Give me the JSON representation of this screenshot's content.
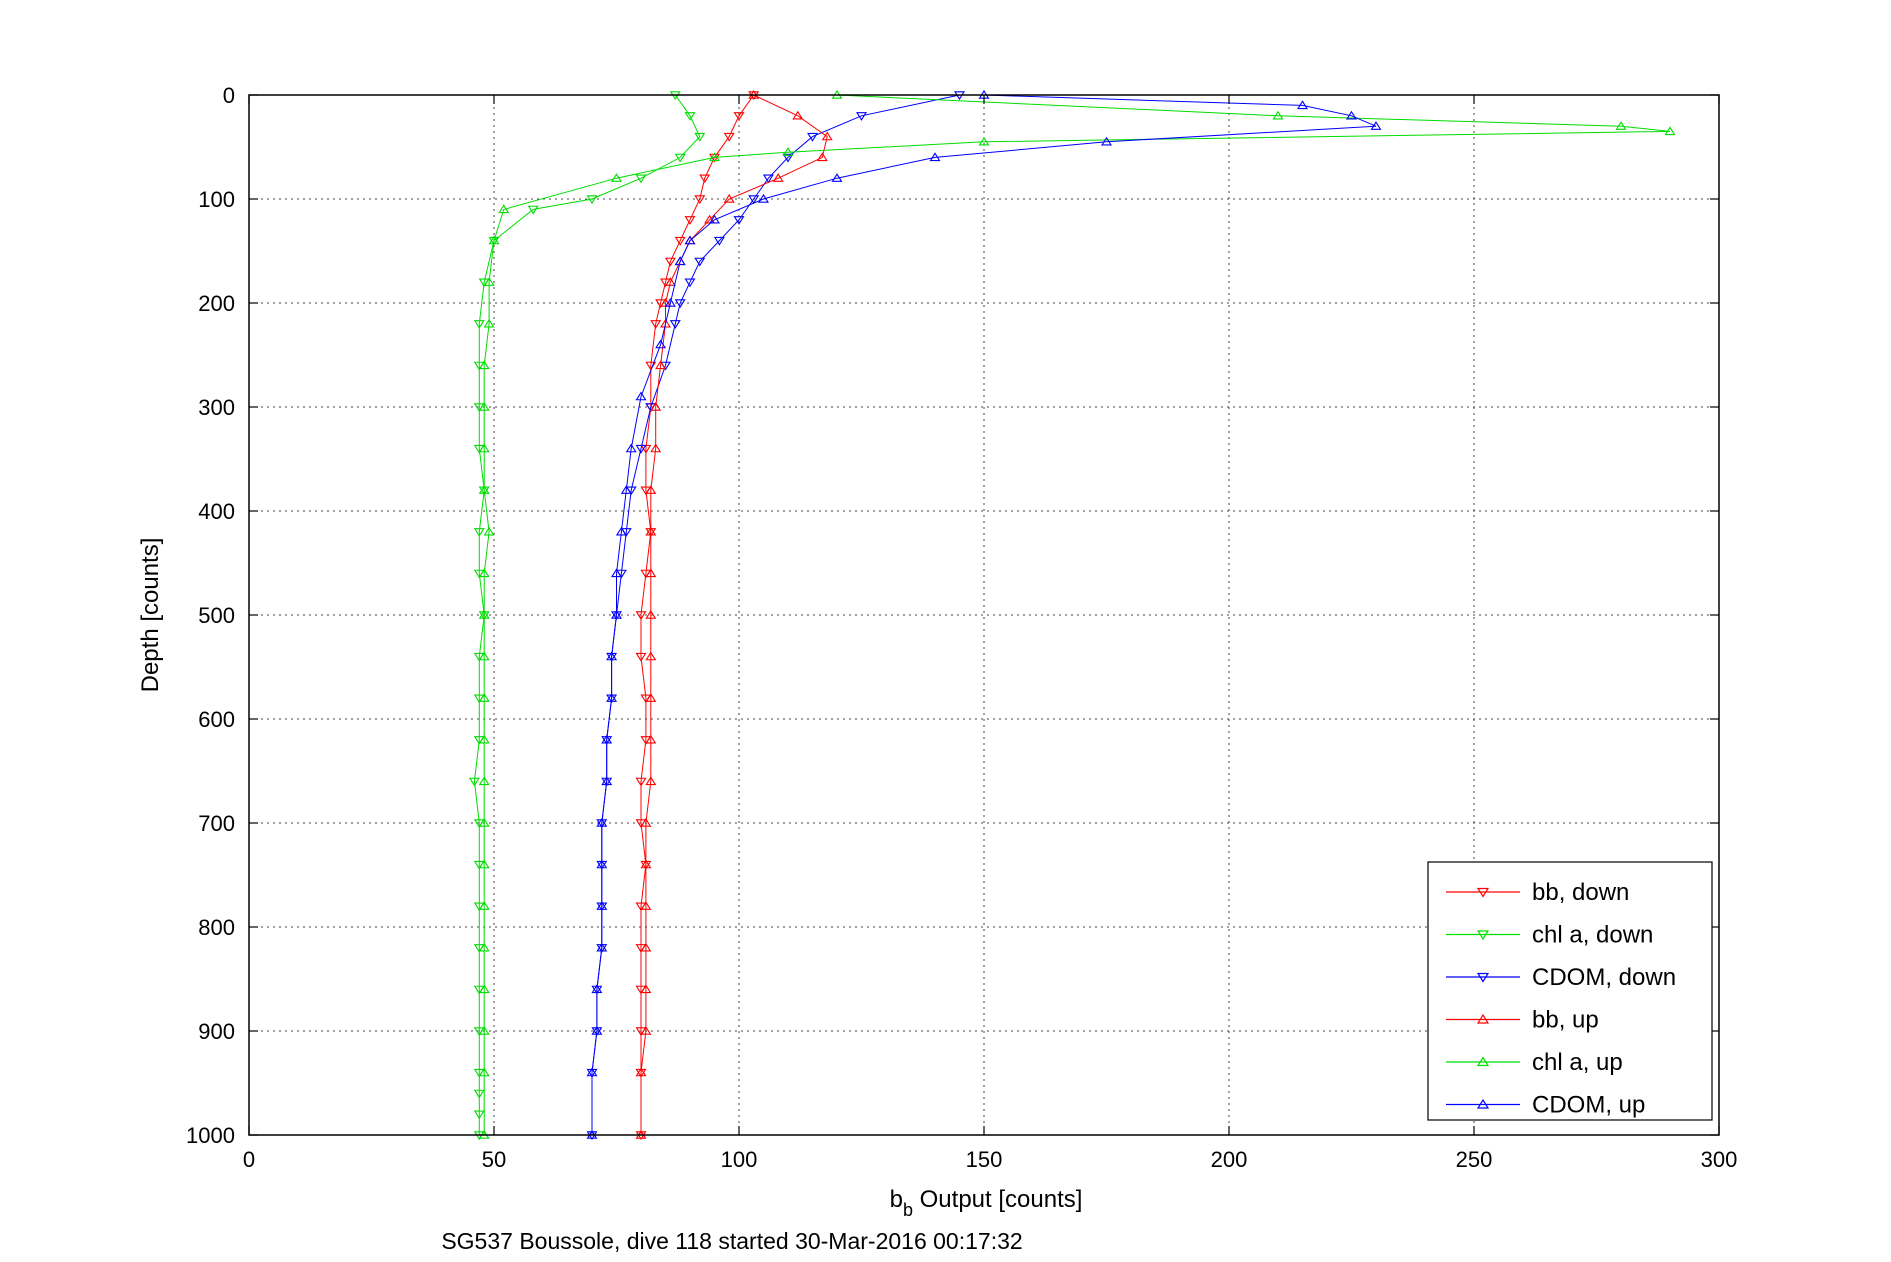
{
  "chart_data": {
    "type": "scatter",
    "xlabel_main": "b",
    "xlabel_sub": "b",
    "xlabel_rest": " Output [counts]",
    "ylabel": "Depth [counts]",
    "caption": "SG537 Boussole, dive 118 started 30-Mar-2016 00:17:32",
    "xlim": [
      0,
      300
    ],
    "ylim": [
      0,
      1000
    ],
    "y_reversed": true,
    "grid": true,
    "legend_position": "bottom-right",
    "x_ticks": [
      "0",
      "50",
      "100",
      "150",
      "200",
      "250",
      "300"
    ],
    "y_ticks": [
      "0",
      "100",
      "200",
      "300",
      "400",
      "500",
      "600",
      "700",
      "800",
      "900",
      "1000"
    ],
    "series": [
      {
        "name": "bb, down",
        "color": "#ff0000",
        "marker": "triangle-down",
        "x": [
          103,
          100,
          98,
          95,
          93,
          92,
          90,
          88,
          86,
          85,
          84,
          83,
          82,
          82,
          81,
          81,
          82,
          81,
          80,
          80,
          81,
          81,
          80,
          80,
          81,
          80,
          80,
          80,
          80,
          80,
          80
        ],
        "y": [
          0,
          20,
          40,
          60,
          80,
          100,
          120,
          140,
          160,
          180,
          200,
          220,
          260,
          300,
          340,
          380,
          420,
          460,
          500,
          540,
          580,
          620,
          660,
          700,
          740,
          780,
          820,
          860,
          900,
          940,
          1000
        ]
      },
      {
        "name": "chl a, down",
        "color": "#00dd00",
        "marker": "triangle-down",
        "x": [
          87,
          90,
          92,
          88,
          80,
          70,
          58,
          50,
          48,
          47,
          47,
          47,
          47,
          48,
          47,
          47,
          48,
          47,
          47,
          47,
          46,
          47,
          47,
          47,
          47,
          47,
          47,
          47,
          47,
          47,
          47
        ],
        "y": [
          0,
          20,
          40,
          60,
          80,
          100,
          110,
          140,
          180,
          220,
          260,
          300,
          340,
          380,
          420,
          460,
          500,
          540,
          580,
          620,
          660,
          700,
          740,
          780,
          820,
          860,
          900,
          940,
          960,
          980,
          1000
        ]
      },
      {
        "name": "CDOM, down",
        "color": "#0000ff",
        "marker": "triangle-down",
        "x": [
          145,
          125,
          115,
          110,
          106,
          103,
          100,
          96,
          92,
          90,
          88,
          87,
          85,
          82,
          80,
          78,
          77,
          76,
          75,
          74,
          74,
          73,
          73,
          72,
          72,
          72,
          72,
          71,
          71,
          70,
          70
        ],
        "y": [
          0,
          20,
          40,
          60,
          80,
          100,
          120,
          140,
          160,
          180,
          200,
          220,
          260,
          300,
          340,
          380,
          420,
          460,
          500,
          540,
          580,
          620,
          660,
          700,
          740,
          780,
          820,
          860,
          900,
          940,
          1000
        ]
      },
      {
        "name": "bb, up",
        "color": "#ff0000",
        "marker": "triangle-up",
        "x": [
          103,
          112,
          118,
          117,
          108,
          98,
          94,
          90,
          88,
          86,
          85,
          85,
          84,
          83,
          83,
          82,
          82,
          82,
          82,
          82,
          82,
          82,
          82,
          81,
          81,
          81,
          81,
          81,
          81,
          80,
          80
        ],
        "y": [
          0,
          20,
          40,
          60,
          80,
          100,
          120,
          140,
          160,
          180,
          200,
          220,
          260,
          300,
          340,
          380,
          420,
          460,
          500,
          540,
          580,
          620,
          660,
          700,
          740,
          780,
          820,
          860,
          900,
          940,
          1000
        ]
      },
      {
        "name": "chl a, up",
        "color": "#00dd00",
        "marker": "triangle-up",
        "x": [
          120,
          210,
          280,
          290,
          150,
          110,
          95,
          75,
          52,
          50,
          49,
          49,
          48,
          48,
          48,
          48,
          49,
          48,
          48,
          48,
          48,
          48,
          48,
          48,
          48,
          48,
          48,
          48,
          48,
          48,
          48
        ],
        "y": [
          0,
          20,
          30,
          35,
          45,
          55,
          60,
          80,
          110,
          140,
          180,
          220,
          260,
          300,
          340,
          380,
          420,
          460,
          500,
          540,
          580,
          620,
          660,
          700,
          740,
          780,
          820,
          860,
          900,
          940,
          1000
        ]
      },
      {
        "name": "CDOM, up",
        "color": "#0000ff",
        "marker": "triangle-up",
        "x": [
          150,
          215,
          225,
          230,
          175,
          140,
          120,
          105,
          95,
          90,
          88,
          86,
          84,
          80,
          78,
          77,
          76,
          75,
          75,
          74,
          74,
          73,
          73,
          72,
          72,
          72,
          72,
          71,
          71,
          70,
          70
        ],
        "y": [
          0,
          10,
          20,
          30,
          45,
          60,
          80,
          100,
          120,
          140,
          160,
          200,
          240,
          290,
          340,
          380,
          420,
          460,
          500,
          540,
          580,
          620,
          660,
          700,
          740,
          780,
          820,
          860,
          900,
          940,
          1000
        ]
      }
    ]
  }
}
